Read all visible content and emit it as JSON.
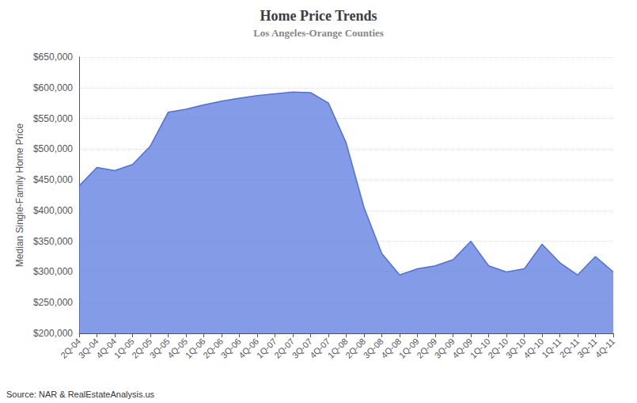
{
  "chart_data": {
    "type": "area",
    "title": "Home Price Trends",
    "subtitle": "Los Angeles-Orange Counties",
    "ylabel": "Median Single-Family Home Price",
    "annotations": [
      "Source: NAR & RealEstateAnalysis.us"
    ],
    "categories": [
      "2Q-04",
      "3Q-04",
      "4Q-04",
      "1Q-05",
      "2Q-05",
      "3Q-05",
      "4Q-05",
      "1Q-06",
      "2Q-06",
      "3Q-06",
      "4Q-06",
      "1Q-07",
      "2Q-07",
      "3Q-07",
      "4Q-07",
      "1Q-08",
      "2Q-08",
      "3Q-08",
      "4Q-08",
      "1Q-09",
      "2Q-09",
      "3Q-09",
      "4Q-09",
      "1Q-10",
      "2Q-10",
      "3Q-10",
      "4Q-10",
      "1Q-11",
      "2Q-11",
      "3Q-11",
      "4Q-11"
    ],
    "values": [
      440000,
      470000,
      465000,
      475000,
      505000,
      560000,
      565000,
      572000,
      578000,
      583000,
      587000,
      590000,
      593000,
      592000,
      575000,
      510000,
      405000,
      330000,
      295000,
      305000,
      310000,
      320000,
      350000,
      310000,
      300000,
      305000,
      345000,
      315000,
      295000,
      325000,
      300000
    ],
    "ylim": [
      200000,
      650000
    ],
    "yticks": [
      {
        "value": 200000,
        "label": "$200,000"
      },
      {
        "value": 250000,
        "label": "$250,000"
      },
      {
        "value": 300000,
        "label": "$300,000"
      },
      {
        "value": 350000,
        "label": "$350,000"
      },
      {
        "value": 400000,
        "label": "$400,000"
      },
      {
        "value": 450000,
        "label": "$450,000"
      },
      {
        "value": 500000,
        "label": "$500,000"
      },
      {
        "value": 550000,
        "label": "$550,000"
      },
      {
        "value": 600000,
        "label": "$600,000"
      },
      {
        "value": 650000,
        "label": "$650,000"
      }
    ],
    "grid": true
  }
}
